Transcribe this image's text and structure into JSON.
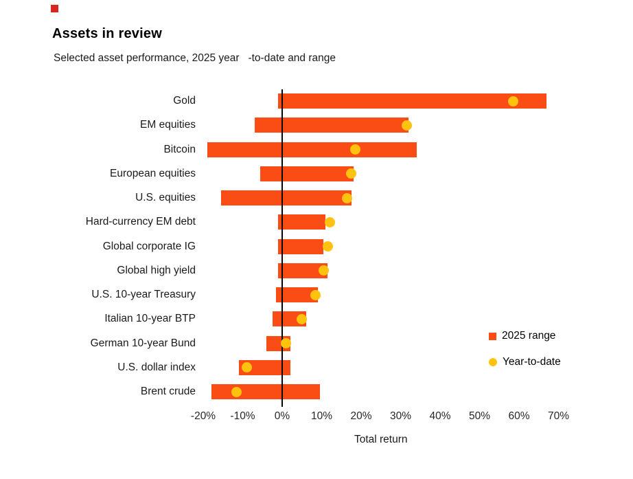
{
  "header": {
    "title": "Assets in review",
    "subtitle": "Selected asset performance, 2025 year   -to-date and range"
  },
  "colors": {
    "range_bar": "#fa4d16",
    "ytd_dot": "#ffc20e",
    "brand_mark": "#d9261c",
    "axis_line": "#000000"
  },
  "chart_data": {
    "type": "bar",
    "subtype": "horizontal-range-with-markers",
    "title": "Assets in review",
    "subtitle": "Selected asset performance, 2025 year-to-date and range",
    "xlabel": "Total return",
    "xlim": [
      -25,
      75
    ],
    "x_tick_labels": [
      "-20%",
      "-10%",
      "0%",
      "10%",
      "20%",
      "30%",
      "40%",
      "50%",
      "60%",
      "70%"
    ],
    "x_tick_values": [
      -20,
      -10,
      0,
      10,
      20,
      30,
      40,
      50,
      60,
      70
    ],
    "grid": false,
    "zero_line": true,
    "legend_position": "right",
    "categories": [
      "Gold",
      "EM equities",
      "Bitcoin",
      "European equities",
      "U.S. equities",
      "Hard-currency EM debt",
      "Global corporate IG",
      "Global high yield",
      "U.S. 10-year Treasury",
      "Italian 10-year BTP",
      "German 10-year Bund",
      "U.S. dollar index",
      "Brent crude"
    ],
    "series": [
      {
        "name": "2025 range",
        "type": "range",
        "color": "#fa4d16",
        "ranges": [
          [
            -1,
            67
          ],
          [
            -7,
            32
          ],
          [
            -19,
            34
          ],
          [
            -5.5,
            18
          ],
          [
            -15.5,
            17.5
          ],
          [
            -1,
            11
          ],
          [
            -1,
            10.5
          ],
          [
            -1,
            11.5
          ],
          [
            -1.5,
            9
          ],
          [
            -2.5,
            6
          ],
          [
            -4,
            2
          ],
          [
            -11,
            2
          ],
          [
            -18,
            9.5
          ]
        ]
      },
      {
        "name": "Year-to-date",
        "type": "point",
        "color": "#ffc20e",
        "values": [
          58.5,
          31.5,
          18.5,
          17.5,
          16.5,
          12,
          11.5,
          10.5,
          8.5,
          5,
          1,
          -9,
          -11.5
        ]
      }
    ]
  }
}
